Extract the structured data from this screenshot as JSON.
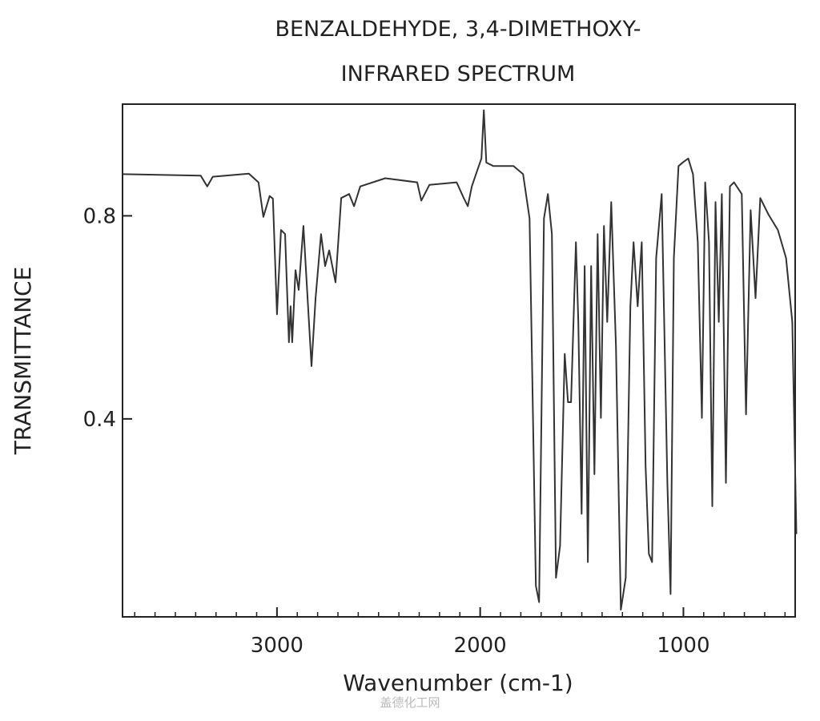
{
  "chart_data": {
    "type": "line",
    "title": "BENZALDEHYDE, 3,4-DIMETHOXY-",
    "subtitle": "INFRARED SPECTRUM",
    "x_label": "Wavenumber (cm-1)",
    "y_label": "TRANSMITTANCE",
    "watermark": "盖德化工网",
    "color": "#333333",
    "xlim": [
      3760,
      450
    ],
    "ylim": [
      0.01,
      1.02
    ],
    "xticks": [
      3000,
      2000,
      1000
    ],
    "yticks": [
      0.8,
      0.4
    ],
    "x": [
      3757,
      3375,
      3343,
      3316,
      3138,
      3091,
      3067,
      3036,
      3020,
      3000,
      2980,
      2960,
      2941,
      2933,
      2925,
      2909,
      2893,
      2870,
      2830,
      2810,
      2783,
      2763,
      2743,
      2712,
      2684,
      2645,
      2621,
      2590,
      2467,
      2310,
      2290,
      2250,
      2116,
      2081,
      2061,
      2041,
      2014,
      1994,
      1982,
      1970,
      1935,
      1836,
      1789,
      1757,
      1726,
      1710,
      1686,
      1667,
      1647,
      1627,
      1607,
      1584,
      1568,
      1553,
      1529,
      1517,
      1501,
      1486,
      1470,
      1454,
      1438,
      1422,
      1406,
      1391,
      1375,
      1355,
      1332,
      1308,
      1284,
      1261,
      1245,
      1225,
      1205,
      1186,
      1170,
      1154,
      1134,
      1107,
      1079,
      1063,
      1047,
      1024,
      1000,
      976,
      953,
      929,
      909,
      893,
      874,
      858,
      842,
      826,
      811,
      791,
      771,
      751,
      713,
      692,
      669,
      645,
      622,
      582,
      535,
      495,
      464,
      444
    ],
    "values": [
      0.882,
      0.879,
      0.858,
      0.877,
      0.883,
      0.866,
      0.798,
      0.839,
      0.834,
      0.606,
      0.772,
      0.764,
      0.551,
      0.622,
      0.551,
      0.693,
      0.654,
      0.78,
      0.504,
      0.638,
      0.764,
      0.701,
      0.732,
      0.669,
      0.835,
      0.843,
      0.819,
      0.858,
      0.874,
      0.866,
      0.83,
      0.861,
      0.866,
      0.835,
      0.819,
      0.858,
      0.89,
      0.913,
      1.008,
      0.905,
      0.898,
      0.898,
      0.882,
      0.795,
      0.071,
      0.039,
      0.795,
      0.843,
      0.764,
      0.087,
      0.15,
      0.528,
      0.433,
      0.433,
      0.748,
      0.591,
      0.213,
      0.701,
      0.118,
      0.701,
      0.291,
      0.764,
      0.402,
      0.78,
      0.591,
      0.827,
      0.543,
      0.024,
      0.087,
      0.622,
      0.748,
      0.622,
      0.748,
      0.307,
      0.134,
      0.118,
      0.717,
      0.843,
      0.274,
      0.055,
      0.717,
      0.898,
      0.906,
      0.913,
      0.882,
      0.748,
      0.402,
      0.866,
      0.748,
      0.228,
      0.827,
      0.591,
      0.843,
      0.274,
      0.858,
      0.866,
      0.843,
      0.409,
      0.811,
      0.638,
      0.835,
      0.803,
      0.772,
      0.717,
      0.591,
      0.173
    ]
  }
}
